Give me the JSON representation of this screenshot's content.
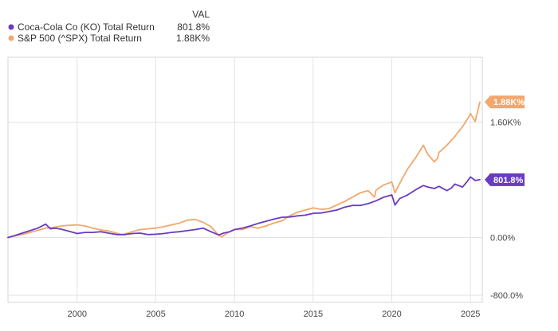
{
  "chart_data": {
    "type": "line",
    "legend_placement": "top-left",
    "legend_header": "VAL",
    "y_unit": "%",
    "x_ticks": [
      2000,
      2005,
      2010,
      2015,
      2020,
      2025
    ],
    "y_ticks": [
      {
        "value": 1600,
        "label": "1.60K%"
      },
      {
        "value": 0,
        "label": "0.00%"
      },
      {
        "value": -800,
        "label": "-800.0%"
      }
    ],
    "xlim": [
      1995.6,
      2025.75
    ],
    "ylim": [
      -900,
      2500
    ],
    "grid": true,
    "series": [
      {
        "name": "Coca-Cola Co (KO) Total Return",
        "legend_value": "801.8%",
        "end_label": "801.8%",
        "color": "#6a3cc0",
        "end_value": 801.8,
        "x": [
          1995.6,
          1996.0,
          1996.5,
          1997.0,
          1997.5,
          1998.0,
          1998.3,
          1998.6,
          1999.0,
          1999.5,
          2000.0,
          2000.5,
          2001.0,
          2001.5,
          2002.0,
          2002.5,
          2003.0,
          2003.5,
          2004.0,
          2004.5,
          2005.0,
          2005.5,
          2006.0,
          2006.5,
          2007.0,
          2007.5,
          2008.0,
          2008.5,
          2009.0,
          2009.3,
          2009.7,
          2010.0,
          2010.5,
          2011.0,
          2011.5,
          2012.0,
          2012.5,
          2013.0,
          2013.5,
          2014.0,
          2014.5,
          2015.0,
          2015.5,
          2016.0,
          2016.5,
          2017.0,
          2017.5,
          2018.0,
          2018.5,
          2019.0,
          2019.5,
          2020.0,
          2020.2,
          2020.5,
          2021.0,
          2021.5,
          2022.0,
          2022.3,
          2022.7,
          2023.0,
          2023.5,
          2023.8,
          2024.0,
          2024.5,
          2024.8,
          2025.0,
          2025.3,
          2025.6
        ],
        "y": [
          0,
          25,
          60,
          95,
          130,
          185,
          120,
          130,
          115,
          85,
          55,
          70,
          70,
          80,
          60,
          40,
          40,
          55,
          60,
          40,
          45,
          55,
          70,
          80,
          95,
          110,
          130,
          80,
          35,
          60,
          80,
          110,
          130,
          160,
          195,
          225,
          255,
          280,
          285,
          300,
          310,
          335,
          340,
          360,
          380,
          420,
          445,
          445,
          470,
          510,
          560,
          590,
          450,
          540,
          590,
          660,
          720,
          700,
          680,
          710,
          650,
          690,
          740,
          700,
          780,
          840,
          790,
          801.8
        ]
      },
      {
        "name": "S&P 500 (^SPX) Total Return",
        "legend_value": "1.88K%",
        "end_label": "1.88K%",
        "color": "#f2a76c",
        "end_value": 1880,
        "x": [
          1995.6,
          1996.0,
          1996.5,
          1997.0,
          1997.5,
          1998.0,
          1998.5,
          1999.0,
          1999.5,
          2000.0,
          2000.5,
          2001.0,
          2001.5,
          2002.0,
          2002.5,
          2002.8,
          2003.0,
          2003.5,
          2004.0,
          2004.5,
          2005.0,
          2005.5,
          2006.0,
          2006.5,
          2007.0,
          2007.5,
          2008.0,
          2008.5,
          2009.0,
          2009.2,
          2009.6,
          2010.0,
          2010.5,
          2011.0,
          2011.5,
          2012.0,
          2012.5,
          2013.0,
          2013.5,
          2014.0,
          2014.5,
          2015.0,
          2015.5,
          2016.0,
          2016.5,
          2017.0,
          2017.5,
          2018.0,
          2018.5,
          2018.9,
          2019.0,
          2019.5,
          2020.0,
          2020.2,
          2020.5,
          2021.0,
          2021.5,
          2022.0,
          2022.3,
          2022.7,
          2022.9,
          2023.0,
          2023.5,
          2024.0,
          2024.5,
          2024.8,
          2025.0,
          2025.3,
          2025.6
        ],
        "y": [
          0,
          20,
          40,
          70,
          100,
          130,
          140,
          160,
          170,
          175,
          160,
          130,
          105,
          90,
          60,
          40,
          45,
          80,
          110,
          120,
          130,
          150,
          175,
          200,
          240,
          250,
          210,
          150,
          30,
          10,
          70,
          110,
          110,
          150,
          130,
          160,
          200,
          230,
          300,
          350,
          380,
          410,
          390,
          400,
          450,
          500,
          560,
          620,
          650,
          560,
          660,
          730,
          770,
          620,
          750,
          950,
          1100,
          1280,
          1150,
          1050,
          1100,
          1180,
          1280,
          1400,
          1540,
          1640,
          1720,
          1610,
          1880
        ]
      }
    ]
  }
}
